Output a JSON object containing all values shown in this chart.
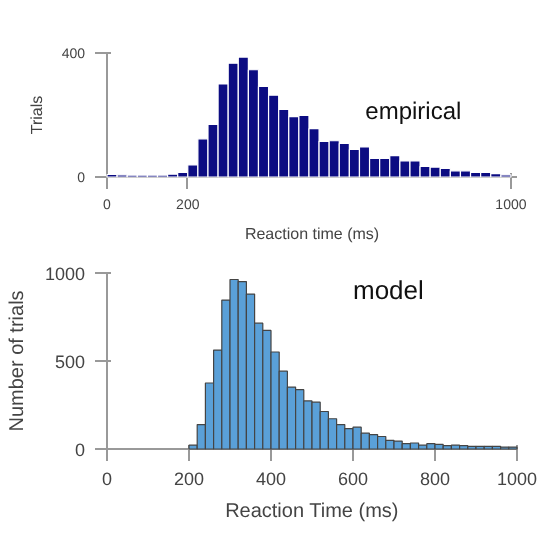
{
  "chart_data": [
    {
      "type": "histogram",
      "xlabel": "Reaction time (ms)",
      "ylabel": "Trials",
      "annotations": [
        "empirical"
      ],
      "color": "#0c0c82",
      "bins": [
        0,
        25,
        50,
        75,
        100,
        125,
        150,
        175,
        200,
        225,
        250,
        275,
        300,
        325,
        350,
        375,
        400,
        425,
        450,
        475,
        500,
        525,
        550,
        575,
        600,
        625,
        650,
        675,
        700,
        725,
        750,
        775,
        800,
        825,
        850,
        875,
        900,
        925,
        950,
        975,
        1000
      ],
      "values": [
        8,
        7,
        6,
        6,
        6,
        6,
        9,
        15,
        39,
        123,
        170,
        300,
        367,
        387,
        346,
        292,
        264,
        218,
        195,
        199,
        156,
        115,
        117,
        108,
        89,
        97,
        60,
        60,
        69,
        52,
        52,
        34,
        32,
        28,
        20,
        20,
        15,
        15,
        11,
        7
      ],
      "xlim": [
        0,
        1015
      ],
      "ylim": [
        0,
        400
      ],
      "xticks": [
        0,
        200,
        1000
      ],
      "yticks": [
        0,
        400
      ],
      "grid": false
    },
    {
      "type": "histogram",
      "xlabel": "Reaction Time (ms)",
      "ylabel": "Number of trials",
      "annotations": [
        "model"
      ],
      "color": "#5aa0d8",
      "bins": [
        200,
        220,
        240,
        260,
        280,
        300,
        320,
        340,
        360,
        380,
        400,
        420,
        440,
        460,
        480,
        500,
        520,
        540,
        560,
        580,
        600,
        620,
        640,
        660,
        680,
        700,
        720,
        740,
        760,
        780,
        800,
        820,
        840,
        860,
        880,
        900,
        920,
        940,
        960,
        980,
        1000
      ],
      "values": [
        22,
        139,
        375,
        562,
        846,
        963,
        951,
        880,
        715,
        674,
        551,
        442,
        352,
        337,
        273,
        266,
        213,
        172,
        139,
        116,
        124,
        90,
        82,
        71,
        49,
        45,
        30,
        34,
        22,
        30,
        26,
        19,
        22,
        19,
        15,
        15,
        15,
        15,
        11,
        11
      ],
      "xlim": [
        0,
        1000
      ],
      "ylim": [
        0,
        1000
      ],
      "xticks": [
        0,
        200,
        400,
        600,
        800,
        1000
      ],
      "yticks": [
        0,
        500,
        1000
      ],
      "grid": false
    }
  ]
}
